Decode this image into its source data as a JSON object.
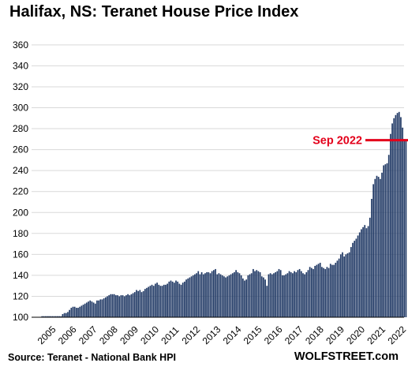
{
  "chart_data": {
    "type": "bar",
    "title": "Halifax, NS: Teranet House Price Index",
    "source": "Source: Teranet - National Bank HPI",
    "brand": "WOLFSTREET.com",
    "ylim": [
      100,
      360
    ],
    "yticks": [
      100,
      120,
      140,
      160,
      180,
      200,
      220,
      240,
      260,
      280,
      300,
      320,
      340,
      360
    ],
    "xticks": [
      "2005",
      "2006",
      "2007",
      "2008",
      "2009",
      "2010",
      "2011",
      "2012",
      "2013",
      "2014",
      "2015",
      "2016",
      "2017",
      "2018",
      "2019",
      "2020",
      "2021",
      "2022"
    ],
    "grid": true,
    "start_period": "2005-01",
    "frequency": "monthly",
    "bar_color": "#1f3864",
    "annotation": {
      "label": "Sep 2022",
      "value": 269,
      "color": "#e3001b"
    },
    "values": [
      101,
      101,
      101,
      101,
      101,
      101,
      101,
      101,
      101,
      101,
      101,
      101,
      103,
      104,
      104,
      105,
      107,
      109,
      110,
      110,
      109,
      109,
      110,
      111,
      112,
      113,
      114,
      115,
      116,
      115,
      114,
      113,
      116,
      116,
      117,
      117,
      118,
      119,
      120,
      121,
      122,
      122,
      122,
      121,
      121,
      120,
      121,
      121,
      120,
      121,
      122,
      121,
      122,
      123,
      124,
      126,
      125,
      126,
      124,
      125,
      127,
      128,
      129,
      130,
      131,
      130,
      132,
      133,
      131,
      130,
      130,
      131,
      131,
      132,
      134,
      135,
      134,
      133,
      135,
      134,
      132,
      131,
      133,
      134,
      136,
      137,
      138,
      139,
      140,
      141,
      142,
      144,
      141,
      143,
      141,
      142,
      143,
      143,
      142,
      144,
      145,
      146,
      141,
      142,
      141,
      140,
      139,
      138,
      139,
      140,
      141,
      142,
      143,
      145,
      143,
      142,
      140,
      137,
      135,
      136,
      140,
      141,
      142,
      146,
      144,
      145,
      144,
      143,
      139,
      138,
      136,
      130,
      141,
      142,
      141,
      142,
      143,
      144,
      146,
      145,
      140,
      140,
      141,
      142,
      144,
      143,
      142,
      144,
      143,
      145,
      146,
      144,
      142,
      141,
      143,
      145,
      148,
      147,
      146,
      149,
      150,
      151,
      152,
      148,
      147,
      146,
      148,
      147,
      151,
      150,
      150,
      152,
      154,
      156,
      160,
      162,
      158,
      160,
      161,
      162,
      167,
      171,
      173,
      175,
      178,
      181,
      184,
      186,
      188,
      185,
      187,
      195,
      213,
      227,
      232,
      235,
      234,
      232,
      238,
      245,
      246,
      247,
      255,
      275,
      285,
      290,
      293,
      295,
      296,
      291,
      281,
      270,
      269
    ]
  }
}
